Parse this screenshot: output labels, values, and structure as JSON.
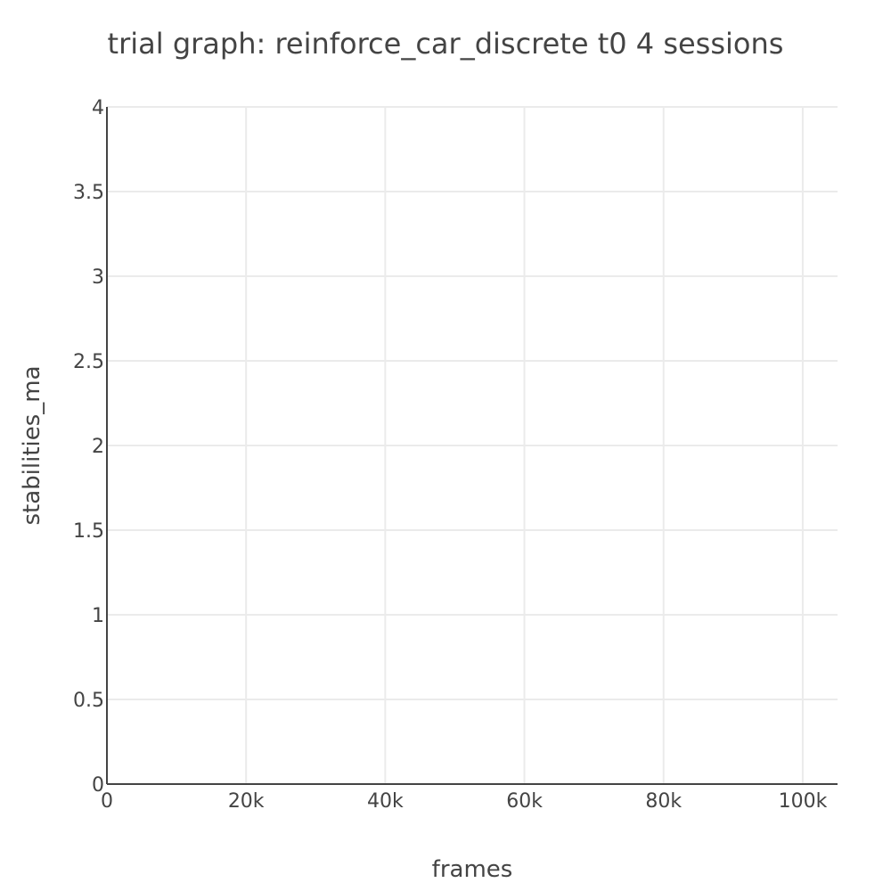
{
  "chart_data": {
    "type": "line",
    "title": "trial graph: reinforce_car_discrete t0 4 sessions",
    "xlabel": "frames",
    "ylabel": "stabilities_ma",
    "xlim": [
      0,
      105000
    ],
    "ylim": [
      0,
      4
    ],
    "x_ticks": [
      0,
      20000,
      40000,
      60000,
      80000,
      100000
    ],
    "x_tick_labels": [
      "0",
      "20k",
      "40k",
      "60k",
      "80k",
      "100k"
    ],
    "y_ticks": [
      0,
      0.5,
      1,
      1.5,
      2,
      2.5,
      3,
      3.5,
      4
    ],
    "y_tick_labels": [
      "0",
      "0.5",
      "1",
      "1.5",
      "2",
      "2.5",
      "3",
      "3.5",
      "4"
    ],
    "grid": true,
    "series": []
  },
  "colors": {
    "text": "#444444",
    "grid": "#ebebeb",
    "axis": "#444444",
    "background": "#ffffff"
  }
}
